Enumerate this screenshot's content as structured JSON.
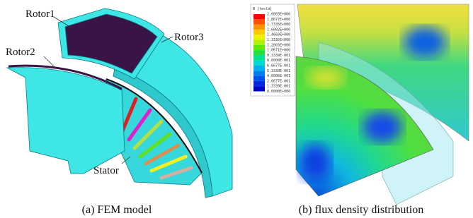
{
  "figure_a": {
    "labels": {
      "rotor1": "Rotor1",
      "rotor2": "Rotor2",
      "rotor3": "Rotor3",
      "stator": "Stator"
    },
    "caption": "(a) FEM model"
  },
  "figure_b": {
    "legend": {
      "title": "B [tesla]",
      "ticks": [
        "2.0003E+000",
        "1.8677E+000",
        "1.7335E+000",
        "1.6002E+000",
        "1.4669E+000",
        "1.3335E+000",
        "1.2003E+000",
        "1.0671E+000",
        "9.3339E-001",
        "8.0008E-001",
        "6.6677E-001",
        "5.3339E-001",
        "4.0006E-001",
        "2.6677E-001",
        "1.3339E-001",
        "0.0000E+000"
      ]
    },
    "caption": "(b) flux density distribution"
  }
}
